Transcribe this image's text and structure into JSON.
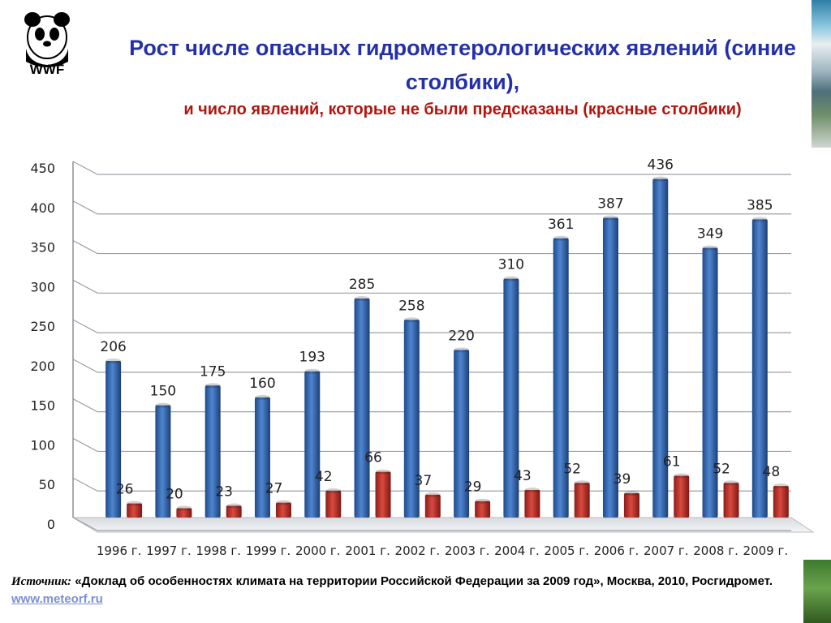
{
  "logo": {
    "text": "WWF"
  },
  "title": {
    "main": "Рост числе опасных гидрометерологических явлений (синие столбики),",
    "sub": "и число явлений, которые не были предсказаны (красные столбики)"
  },
  "chart_data": {
    "type": "bar",
    "categories": [
      "1996 г.",
      "1997 г.",
      "1998 г.",
      "1999 г.",
      "2000 г.",
      "2001 г.",
      "2002 г.",
      "2003 г.",
      "2004 г.",
      "2005 г.",
      "2006 г.",
      "2007 г.",
      "2008 г.",
      "2009 г."
    ],
    "series": [
      {
        "color": "#3a6fb8",
        "values": [
          206,
          150,
          175,
          160,
          193,
          285,
          258,
          220,
          310,
          361,
          387,
          436,
          349,
          385
        ]
      },
      {
        "color": "#c0312b",
        "values": [
          26,
          20,
          23,
          27,
          42,
          66,
          37,
          29,
          43,
          52,
          39,
          61,
          52,
          48
        ]
      }
    ],
    "ylim": [
      0,
      450
    ],
    "yticks": [
      0,
      50,
      100,
      150,
      200,
      250,
      300,
      350,
      400,
      450
    ],
    "grid": true,
    "style": "3d"
  },
  "source": {
    "label": "Источник:",
    "text": "«Доклад об особенностях климата на территории Российской Федерации за 2009 год», Москва, 2010, Росгидромет.",
    "link": "www.meteorf.ru"
  }
}
